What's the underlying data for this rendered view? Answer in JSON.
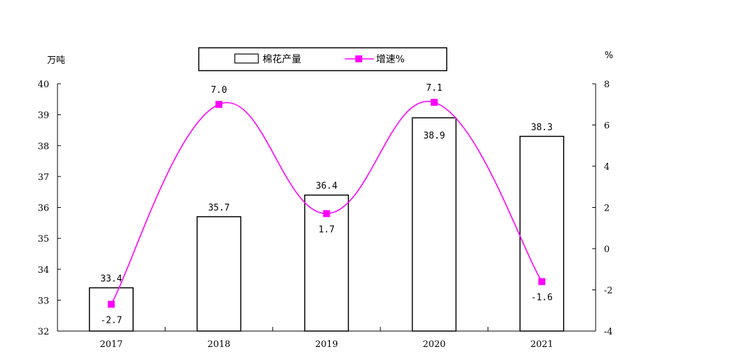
{
  "chart_data": {
    "type": "bar",
    "categories": [
      "2017",
      "2018",
      "2019",
      "2020",
      "2021"
    ],
    "series": [
      {
        "name": "棉花产量",
        "type": "bar",
        "axis": "left",
        "values": [
          33.4,
          35.7,
          36.4,
          38.9,
          38.3
        ],
        "labels": [
          "33.4",
          "35.7",
          "36.4",
          "38.9",
          "38.3"
        ]
      },
      {
        "name": "增速%",
        "type": "line",
        "axis": "right",
        "values": [
          -2.7,
          7.0,
          1.7,
          7.1,
          -1.6
        ],
        "labels": [
          "-2.7",
          "7.0",
          "1.7",
          "7.1",
          "-1.6"
        ],
        "color": "#FF00FF"
      }
    ],
    "y_left": {
      "unit": "万吨",
      "range": [
        32,
        40
      ],
      "ticks": [
        "32",
        "33",
        "34",
        "35",
        "36",
        "37",
        "38",
        "39",
        "40"
      ]
    },
    "y_right": {
      "unit": "%",
      "range": [
        -4,
        8
      ],
      "ticks": [
        "-4",
        "-2",
        "0",
        "2",
        "4",
        "6",
        "8"
      ]
    },
    "legend": {
      "position": "top-center"
    },
    "grid": false
  }
}
